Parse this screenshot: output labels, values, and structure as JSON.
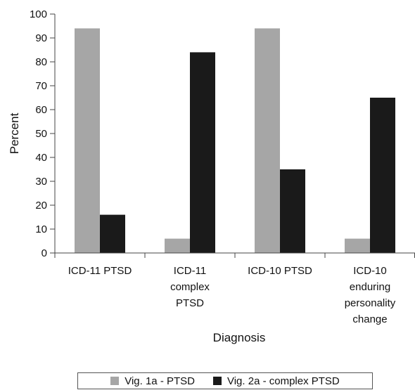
{
  "chart_data": {
    "type": "bar",
    "title": "",
    "xlabel": "Diagnosis",
    "ylabel": "Percent",
    "ylim": [
      0,
      100
    ],
    "yticks": [
      0,
      10,
      20,
      30,
      40,
      50,
      60,
      70,
      80,
      90,
      100
    ],
    "grid": false,
    "legend_position": "bottom",
    "categories": [
      [
        "ICD-11 PTSD"
      ],
      [
        "ICD-11",
        "complex",
        "PTSD"
      ],
      [
        "ICD-10 PTSD"
      ],
      [
        "ICD-10",
        "enduring",
        "personality",
        "change"
      ]
    ],
    "series": [
      {
        "name": "Vig. 1a - PTSD",
        "color": "#a6a6a6",
        "values": [
          94,
          6,
          94,
          6
        ]
      },
      {
        "name": "Vig. 2a - complex PTSD",
        "color": "#1a1a1a",
        "values": [
          16,
          84,
          35,
          65
        ]
      }
    ]
  }
}
